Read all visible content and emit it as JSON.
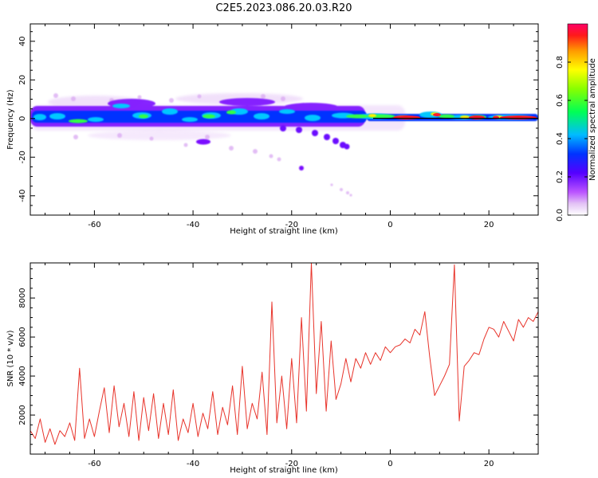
{
  "title": "C2E5.2023.086.20.03.R20",
  "chart_data": [
    {
      "type": "heatmap",
      "xlabel": "Height of straight line (km)",
      "ylabel": "Frequency (Hz)",
      "xlim": [
        -73,
        30
      ],
      "ylim": [
        -50,
        49
      ],
      "xticks": [
        -60,
        -40,
        -20,
        0,
        20
      ],
      "yticks": [
        -40,
        -20,
        0,
        20,
        40
      ],
      "colorbar": {
        "label": "Normalized spectral amplitude",
        "range": [
          0,
          1
        ],
        "ticks": [
          0.0,
          0.2,
          0.4,
          0.6,
          0.8
        ],
        "colormap": [
          "#ffffff",
          "#e9c6f7",
          "#cc66ff",
          "#6600ff",
          "#0033ff",
          "#00ccff",
          "#00ff66",
          "#99ff00",
          "#ffff00",
          "#ff9900",
          "#ff0033",
          "#ff0066"
        ]
      },
      "features": [
        {
          "name": "main band",
          "x_range": [
            -73,
            30
          ],
          "freq": 0,
          "freq_spread": 8
        },
        {
          "name": "descending branch",
          "x": [
            -30,
            -25,
            -20,
            -15,
            -10,
            -8
          ],
          "freq": [
            -3,
            -6,
            -9,
            -12,
            -15,
            -16
          ]
        },
        {
          "name": "faint branch",
          "x": [
            -28,
            -23,
            -18
          ],
          "freq": [
            -20,
            -23,
            -26
          ]
        },
        {
          "name": "faint tail",
          "x": [
            -12,
            -10,
            -8
          ],
          "freq": [
            -36,
            -39,
            -41
          ]
        },
        {
          "name": "isolated patch",
          "x": [
            -39,
            -38,
            -37
          ],
          "freq": [
            -13,
            -13,
            -12
          ]
        }
      ],
      "grid": false
    },
    {
      "type": "line",
      "xlabel": "Height of straight line (km)",
      "ylabel": "SNR (10 * v/v)",
      "xlim": [
        -73,
        30
      ],
      "ylim": [
        0,
        9800
      ],
      "xticks": [
        -60,
        -40,
        -20,
        0,
        20
      ],
      "yticks": [
        2000,
        4000,
        6000,
        8000
      ],
      "color": "#e8342b",
      "grid": false,
      "x": [
        -73,
        -72,
        -71,
        -70,
        -69,
        -68,
        -67,
        -66,
        -65,
        -64,
        -63,
        -62,
        -61,
        -60,
        -59,
        -58,
        -57,
        -56,
        -55,
        -54,
        -53,
        -52,
        -51,
        -50,
        -49,
        -48,
        -47,
        -46,
        -45,
        -44,
        -43,
        -42,
        -41,
        -40,
        -39,
        -38,
        -37,
        -36,
        -35,
        -34,
        -33,
        -32,
        -31,
        -30,
        -29,
        -28,
        -27,
        -26,
        -25,
        -24,
        -23,
        -22,
        -21,
        -20,
        -19,
        -18,
        -17,
        -16,
        -15,
        -14,
        -13,
        -12,
        -11,
        -10,
        -9,
        -8,
        -7,
        -6,
        -5,
        -4,
        -3,
        -2,
        -1,
        0,
        1,
        2,
        3,
        4,
        5,
        6,
        7,
        8,
        9,
        10,
        11,
        12,
        13,
        14,
        15,
        16,
        17,
        18,
        19,
        20,
        21,
        22,
        23,
        24,
        25,
        26,
        27,
        28,
        29,
        30
      ],
      "y": [
        1200,
        800,
        1800,
        600,
        1300,
        500,
        1200,
        900,
        1600,
        700,
        4400,
        800,
        1800,
        900,
        2200,
        3400,
        1100,
        3500,
        1400,
        2600,
        900,
        3200,
        700,
        2900,
        1200,
        3100,
        800,
        2600,
        1000,
        3300,
        700,
        1800,
        1100,
        2600,
        900,
        2100,
        1300,
        3200,
        1000,
        2400,
        1500,
        3500,
        1000,
        4500,
        1300,
        2600,
        1800,
        4200,
        1000,
        7800,
        1600,
        4000,
        1300,
        4900,
        1600,
        7000,
        2200,
        9800,
        3100,
        6800,
        2200,
        5800,
        2800,
        3600,
        4900,
        3700,
        4900,
        4400,
        5200,
        4600,
        5200,
        4800,
        5500,
        5200,
        5500,
        5600,
        5900,
        5700,
        6400,
        6100,
        7300,
        5000,
        3000,
        3500,
        4000,
        4600,
        9700,
        1700,
        4500,
        4800,
        5200,
        5100,
        5900,
        6500,
        6400,
        6000,
        6800,
        6300,
        5800,
        6900,
        6500,
        7000,
        6800,
        7300
      ]
    }
  ]
}
